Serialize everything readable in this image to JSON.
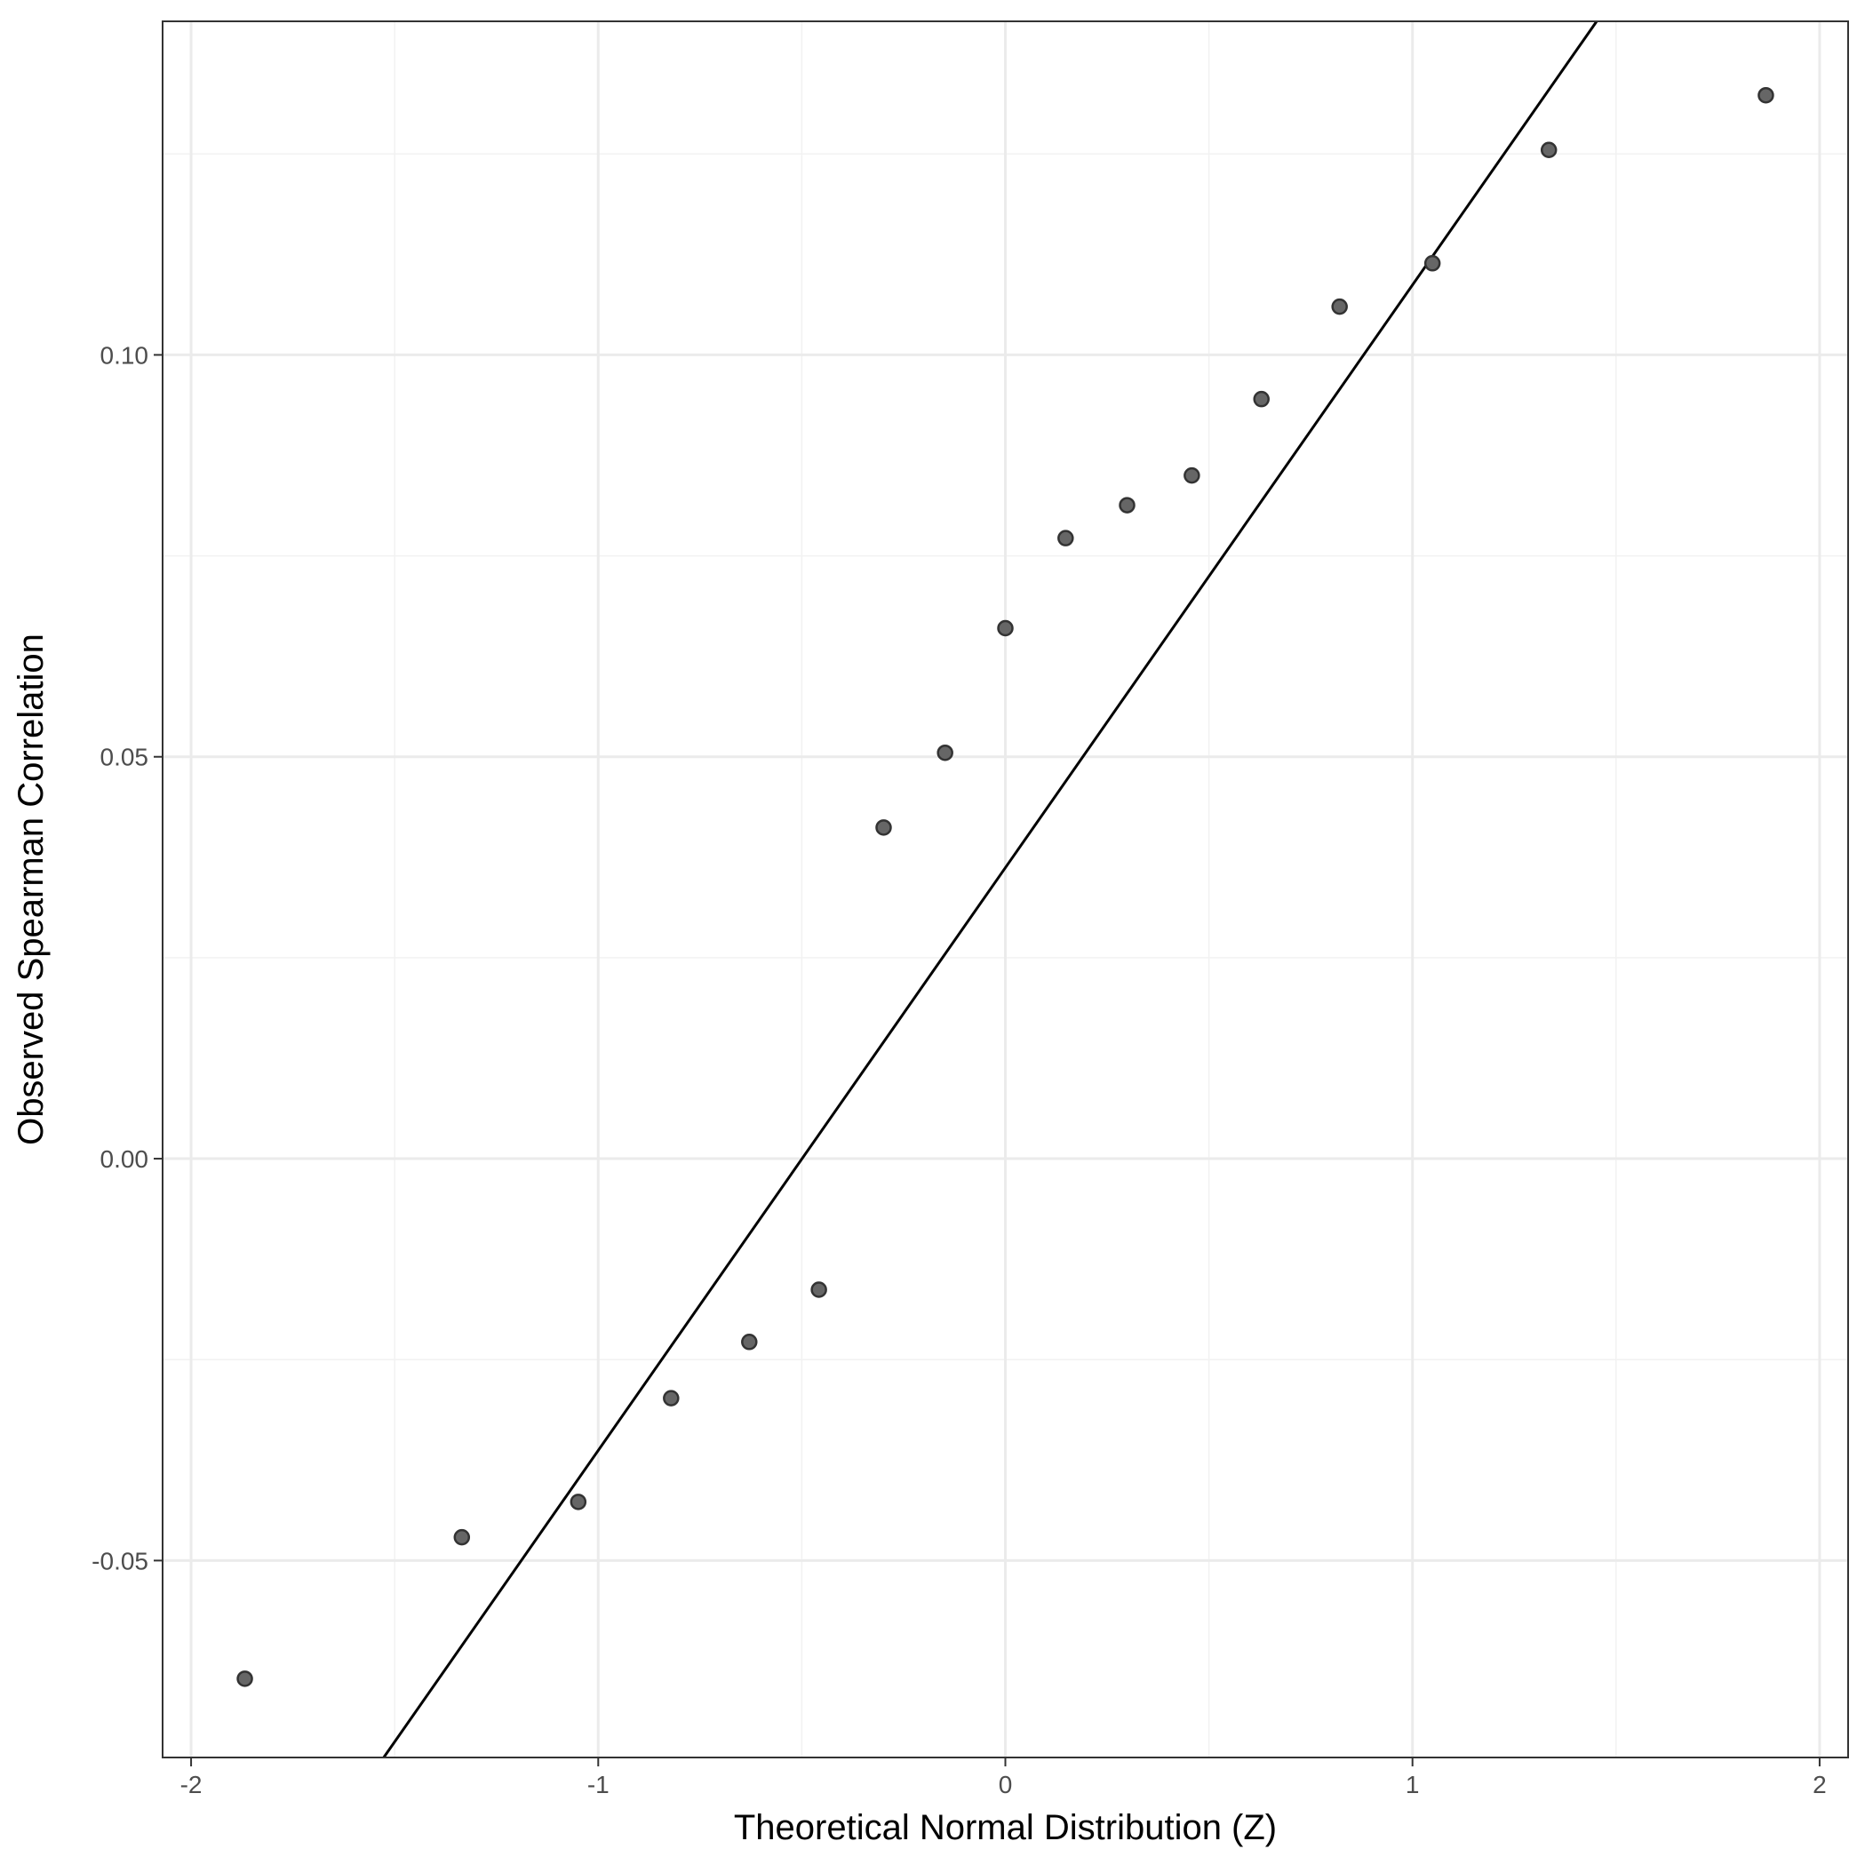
{
  "chart_data": {
    "type": "scatter",
    "xlabel": "Theoretical Normal Distribution (Z)",
    "ylabel": "Observed Spearman Correlation",
    "xlim": [
      -2.07,
      2.07
    ],
    "ylim": [
      -0.0745,
      0.1415
    ],
    "x_ticks": [
      -2,
      -1,
      0,
      1,
      2
    ],
    "x_tick_labels": [
      "-2",
      "-1",
      "0",
      "1",
      "2"
    ],
    "y_ticks": [
      -0.05,
      0.0,
      0.05,
      0.1
    ],
    "y_tick_labels": [
      "-0.05",
      "0.00",
      "0.05",
      "0.10"
    ],
    "x_minor_ticks": [
      -1.5,
      -0.5,
      0.5,
      1.5
    ],
    "y_minor_ticks": [
      -0.025,
      0.025,
      0.075,
      0.125
    ],
    "grid": true,
    "reference_line": {
      "slope": 0.0725,
      "intercept": 0.0362
    },
    "points": [
      {
        "x": -1.868,
        "y": -0.0647
      },
      {
        "x": -1.335,
        "y": -0.0471
      },
      {
        "x": -1.049,
        "y": -0.0427
      },
      {
        "x": -0.821,
        "y": -0.0298
      },
      {
        "x": -0.629,
        "y": -0.0228
      },
      {
        "x": -0.458,
        "y": -0.0163
      },
      {
        "x": -0.299,
        "y": 0.0412
      },
      {
        "x": -0.148,
        "y": 0.0505
      },
      {
        "x": 0.0,
        "y": 0.066
      },
      {
        "x": 0.148,
        "y": 0.0772
      },
      {
        "x": 0.299,
        "y": 0.0813
      },
      {
        "x": 0.458,
        "y": 0.085
      },
      {
        "x": 0.629,
        "y": 0.0945
      },
      {
        "x": 0.821,
        "y": 0.106
      },
      {
        "x": 1.049,
        "y": 0.1114
      },
      {
        "x": 1.335,
        "y": 0.1255
      },
      {
        "x": 1.868,
        "y": 0.1323
      }
    ],
    "colors": {
      "point_fill": "#666666",
      "point_stroke": "#333333",
      "line": "#000000",
      "grid_major": "#ebebeb",
      "grid_minor": "#f2f2f2",
      "panel_border": "#333333"
    }
  }
}
